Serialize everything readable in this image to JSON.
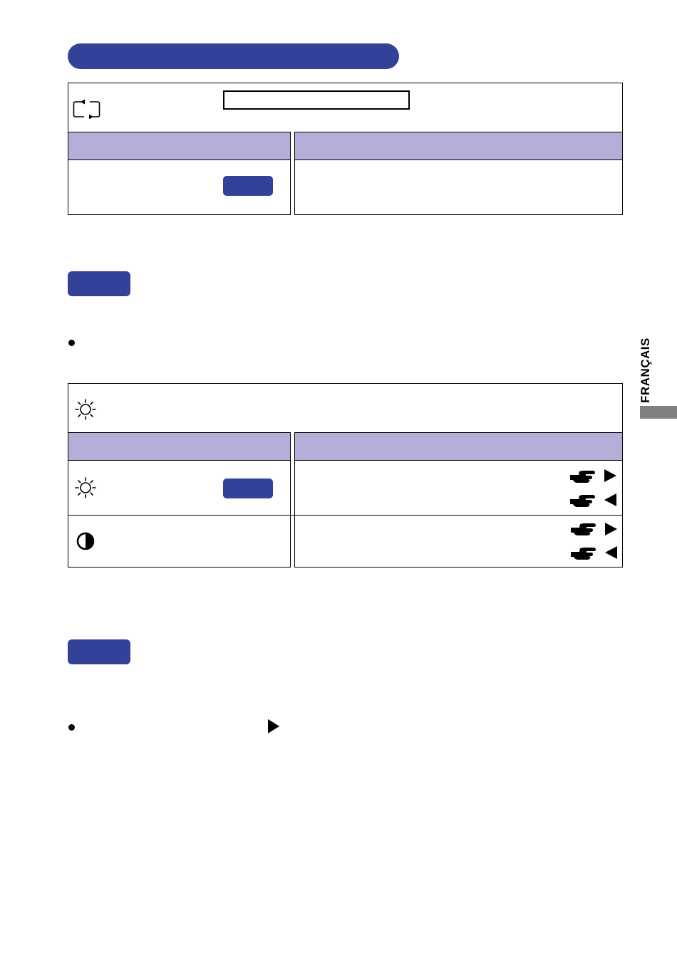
{
  "side_tab": {
    "label": "FRANÇAIS",
    "color": "#808080"
  },
  "accent_color": "#334199",
  "header_row_color": "#b5aed9",
  "icons": {
    "input_select": "input-switch-icon",
    "brightness": "sun-icon",
    "contrast": "contrast-icon",
    "pointer": "pointing-hand-icon",
    "arrow_right": "triangle-right-icon",
    "arrow_left": "triangle-left-icon"
  }
}
